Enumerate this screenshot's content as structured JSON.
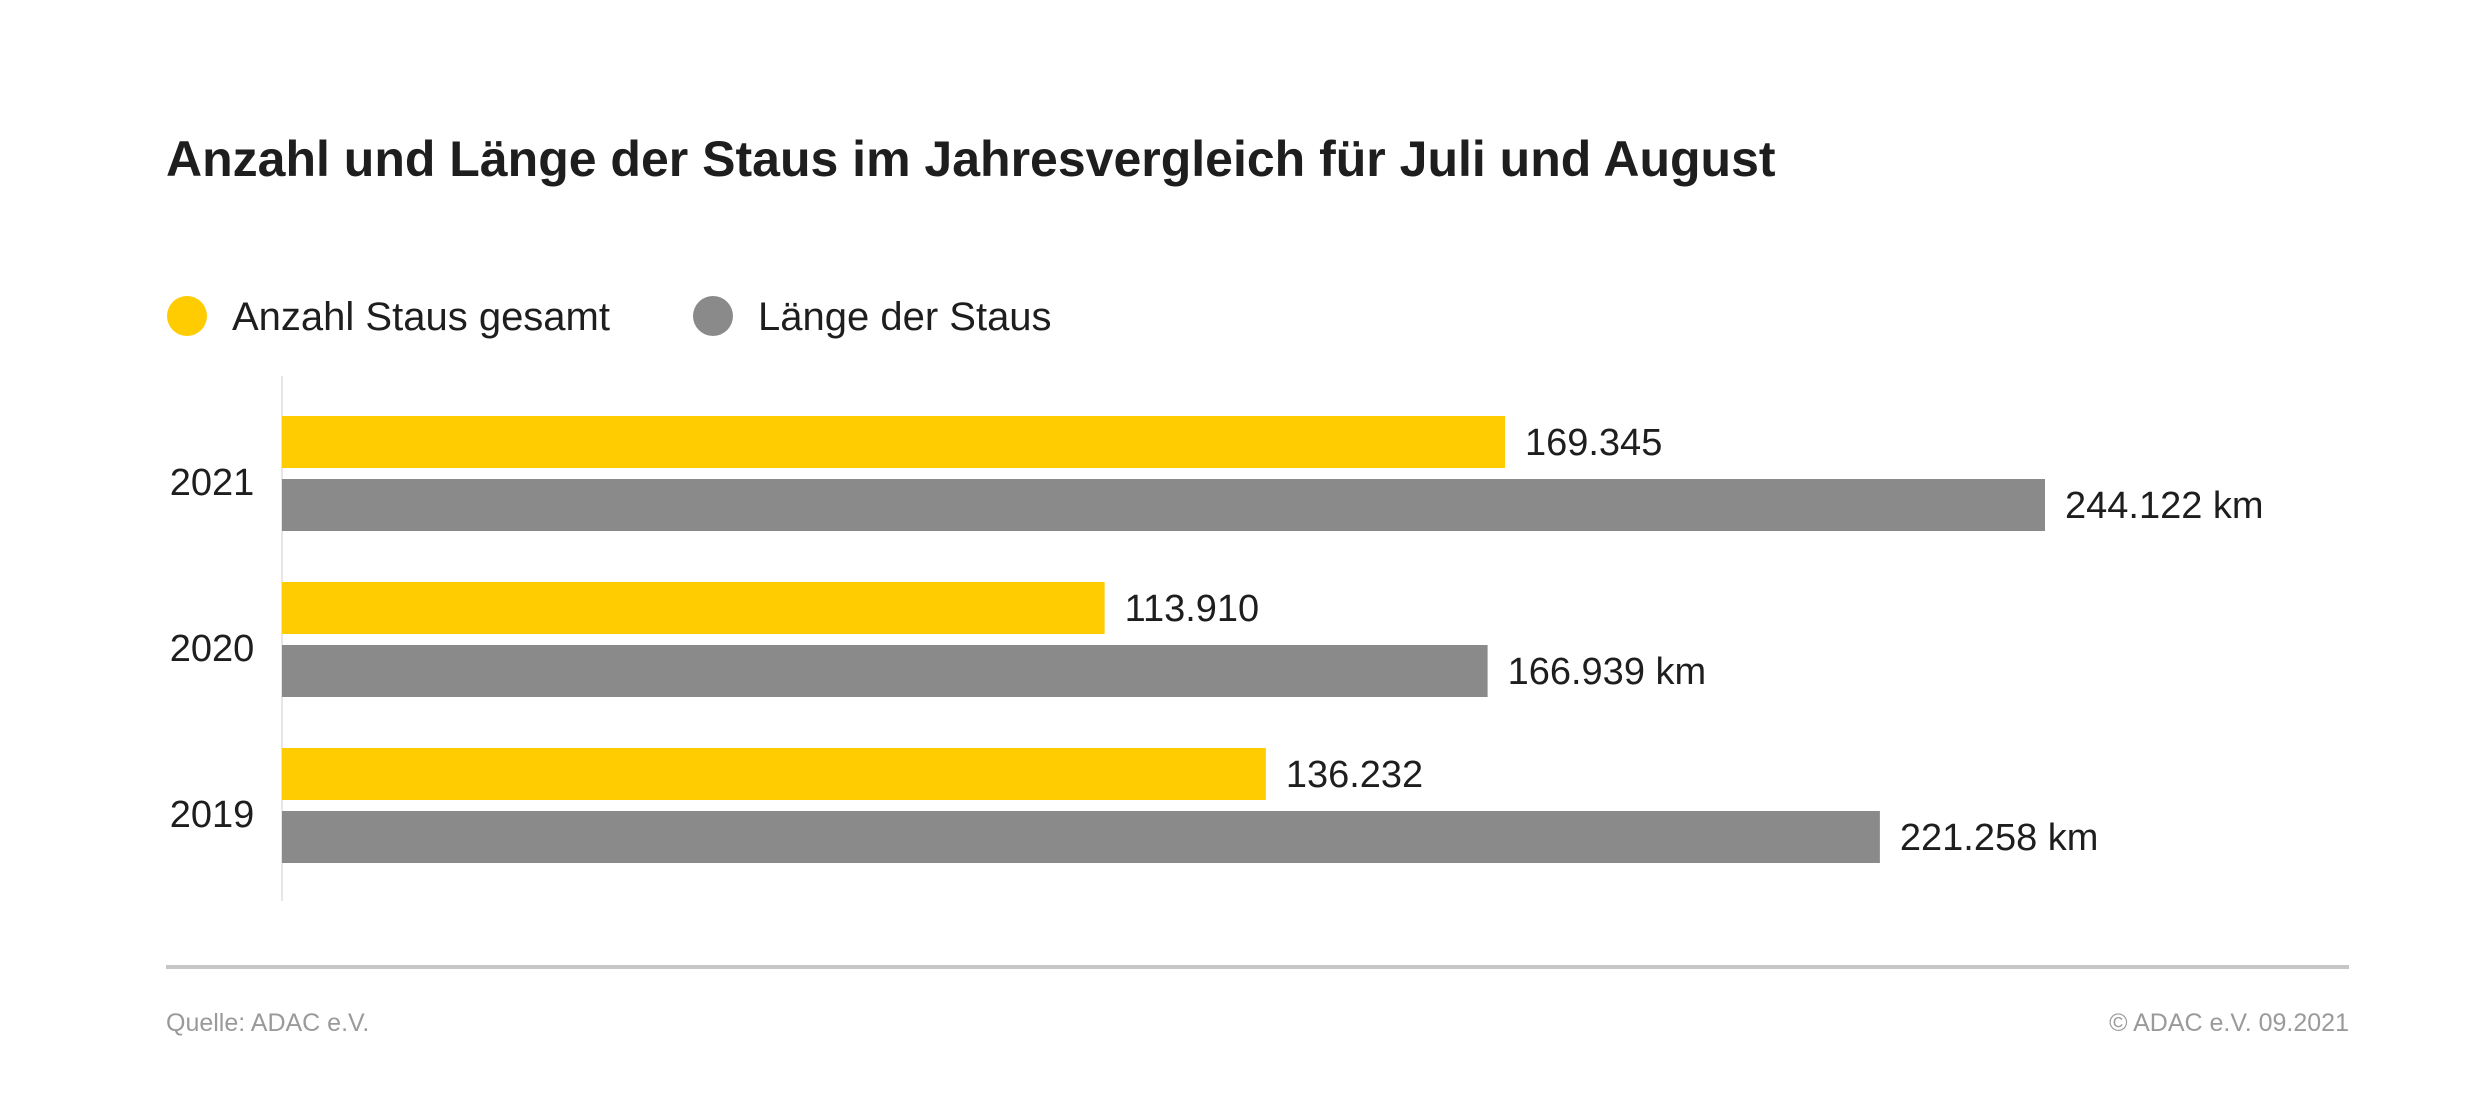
{
  "chart_data": {
    "type": "bar",
    "orientation": "horizontal",
    "title": "Anzahl und Länge der Staus im Jahresvergleich für Juli und August",
    "categories": [
      "2021",
      "2020",
      "2019"
    ],
    "series": [
      {
        "name": "Anzahl Staus gesamt",
        "color": "#FECC00",
        "values": [
          169345,
          113910,
          136232
        ],
        "labels": [
          "169.345",
          "113.910",
          "136.232"
        ]
      },
      {
        "name": "Länge der Staus",
        "color": "#8A8A8A",
        "values": [
          244122,
          166939,
          221258
        ],
        "labels": [
          "244.122 km",
          "166.939 km",
          "221.258 km"
        ]
      }
    ],
    "xlim": [
      0,
      244122
    ],
    "grid": false,
    "legend_position": "top-left",
    "xlabel": "",
    "ylabel": ""
  },
  "footer": {
    "source": "Quelle: ADAC e.V.",
    "copyright": "© ADAC e.V. 09.2021"
  }
}
